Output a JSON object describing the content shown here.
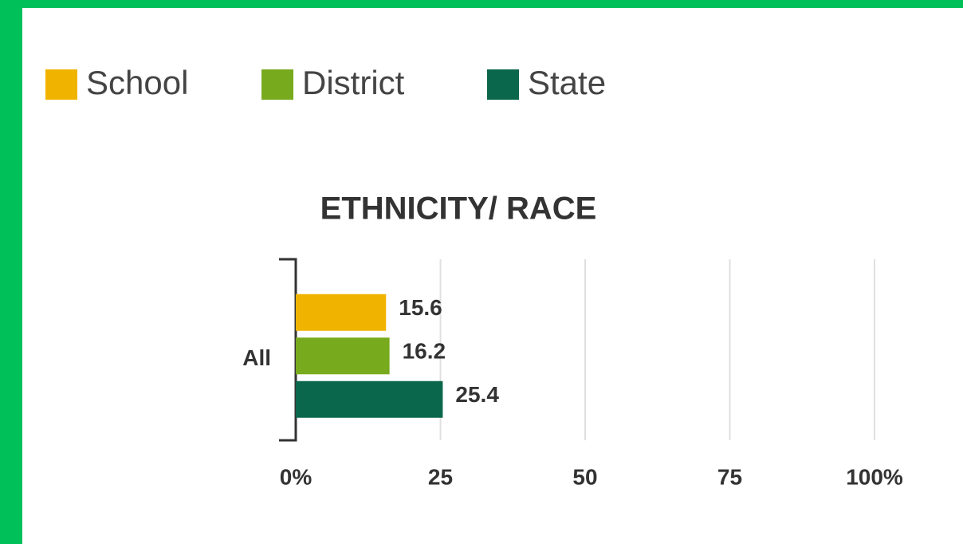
{
  "chart_data": {
    "type": "barh",
    "title": "ETHNICITY/ RACE",
    "categories": [
      "All"
    ],
    "series": [
      {
        "name": "School",
        "color": "#f0b400",
        "values": [
          15.6
        ]
      },
      {
        "name": "District",
        "color": "#78aa1e",
        "values": [
          16.2
        ]
      },
      {
        "name": "State",
        "color": "#0b674b",
        "values": [
          25.4
        ]
      }
    ],
    "xlim": [
      0,
      100
    ],
    "xticks": [
      {
        "value": 0,
        "label": "0%"
      },
      25,
      50,
      75,
      {
        "value": 100,
        "label": "100%"
      }
    ],
    "grid": true
  }
}
